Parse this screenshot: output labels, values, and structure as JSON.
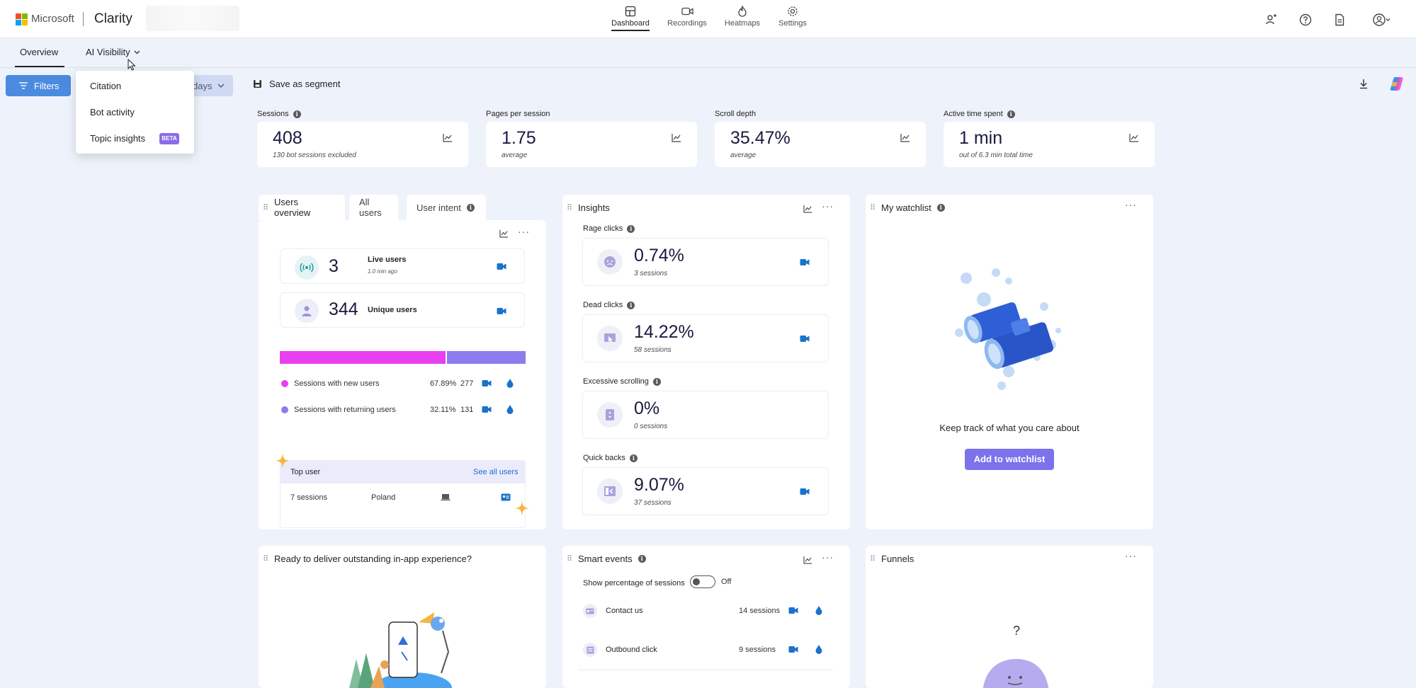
{
  "header": {
    "brand": "Microsoft",
    "app_name": "Clarity",
    "nav": [
      {
        "label": "Dashboard",
        "icon": "dashboard-icon",
        "active": true
      },
      {
        "label": "Recordings",
        "icon": "camera-icon",
        "active": false
      },
      {
        "label": "Heatmaps",
        "icon": "flame-icon",
        "active": false
      },
      {
        "label": "Settings",
        "icon": "gear-icon",
        "active": false
      }
    ],
    "right_icons": [
      "share-people-icon",
      "help-icon",
      "document-icon",
      "account-icon"
    ]
  },
  "subnav": {
    "tabs": [
      {
        "label": "Overview",
        "active": true
      },
      {
        "label": "AI Visibility",
        "active": false
      }
    ]
  },
  "dropdown": {
    "items": [
      {
        "label": "Citation"
      },
      {
        "label": "Bot activity"
      },
      {
        "label": "Topic insights",
        "badge": "BETA"
      }
    ]
  },
  "filterbar": {
    "filters_label": "Filters",
    "date_label": "days",
    "save_segment_label": "Save as segment"
  },
  "metrics": [
    {
      "label": "Sessions",
      "value": "408",
      "sub": "130 bot sessions excluded"
    },
    {
      "label": "Pages per session",
      "value": "1.75",
      "sub": "average"
    },
    {
      "label": "Scroll depth",
      "value": "35.47%",
      "sub": "average"
    },
    {
      "label": "Active time spent",
      "value": "1 min",
      "sub": "out of 6.3 min total time"
    }
  ],
  "users_overview": {
    "tabs": [
      "Users overview",
      "All users",
      "User intent"
    ],
    "live": {
      "value": "3",
      "label": "Live users",
      "sub": "1.0 min ago"
    },
    "unique": {
      "value": "344",
      "label": "Unique users"
    },
    "split_bar": {
      "new_fraction": 0.6789,
      "new_color": "#e83ff0",
      "returning_color": "#8b7cf0"
    },
    "legend": [
      {
        "label": "Sessions with new users",
        "percent": "67.89%",
        "count": "277",
        "color": "#e83ff0"
      },
      {
        "label": "Sessions with returning users",
        "percent": "32.11%",
        "count": "131",
        "color": "#8b7cf0"
      }
    ],
    "top_user": {
      "title": "Top user",
      "link": "See all users",
      "sessions": "7 sessions",
      "country": "Poland"
    }
  },
  "insights": {
    "title": "Insights",
    "items": [
      {
        "label": "Rage clicks",
        "value": "0.74%",
        "sub": "3 sessions"
      },
      {
        "label": "Dead clicks",
        "value": "14.22%",
        "sub": "58 sessions"
      },
      {
        "label": "Excessive scrolling",
        "value": "0%",
        "sub": "0 sessions"
      },
      {
        "label": "Quick backs",
        "value": "9.07%",
        "sub": "37 sessions"
      }
    ]
  },
  "watchlist": {
    "title": "My watchlist",
    "message": "Keep track of what you care about",
    "button": "Add to watchlist"
  },
  "inapp": {
    "title": "Ready to deliver outstanding in-app experience?"
  },
  "smart_events": {
    "title": "Smart events",
    "toggle_label": "Show percentage of sessions",
    "toggle_state": "Off",
    "rows": [
      {
        "label": "Contact us",
        "sessions": "14 sessions"
      },
      {
        "label": "Outbound click",
        "sessions": "9 sessions"
      }
    ]
  },
  "funnels": {
    "title": "Funnels",
    "question": "?"
  },
  "colors": {
    "accent": "#4a8be0",
    "purple_button": "#7b72ec",
    "camera": "#1a73c9"
  }
}
